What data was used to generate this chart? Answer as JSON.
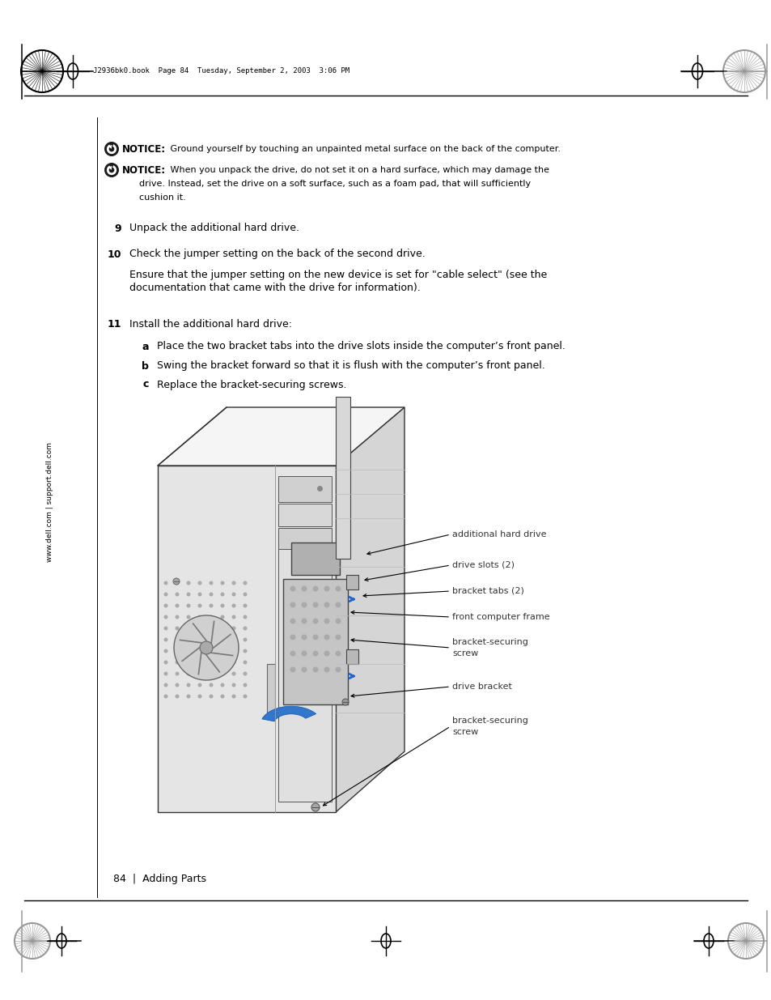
{
  "bg_color": "#ffffff",
  "header_text": "J2936bk0.book  Page 84  Tuesday, September 2, 2003  3:06 PM",
  "footer_text": "84  |  Adding Parts",
  "sidebar_text": "www.dell.com | support.dell.com",
  "notice1_bold": "NOTICE:",
  "notice1_rest": " Ground yourself by touching an unpainted metal surface on the back of the computer.",
  "notice2_bold": "NOTICE:",
  "notice2_line1": " When you unpack the drive, do not set it on a hard surface, which may damage the",
  "notice2_line2": "drive. Instead, set the drive on a soft surface, such as a foam pad, that will sufficiently",
  "notice2_line3": "cushion it.",
  "step9_num": "9",
  "step9_text": "Unpack the additional hard drive.",
  "step10_num": "10",
  "step10_text": "Check the jumper setting on the back of the second drive.",
  "step10_sub1": "Ensure that the jumper setting on the new device is set for \"cable select\" (see the",
  "step10_sub2": "documentation that came with the drive for information).",
  "step11_num": "11",
  "step11_text": "Install the additional hard drive:",
  "step11a": "Place the two bracket tabs into the drive slots inside the computer’s front panel.",
  "step11b": "Swing the bracket forward so that it is flush with the computer’s front panel.",
  "step11c": "Replace the bracket-securing screws.",
  "label1": "additional hard drive",
  "label2": "drive slots (2)",
  "label3": "bracket tabs (2)",
  "label4": "front computer frame",
  "label5a": "bracket-securing",
  "label5b": "screw",
  "label6": "drive bracket",
  "label7a": "bracket-securing",
  "label7b": "screw",
  "notice_icon_color": "#222222",
  "line_color": "#333333",
  "label_color": "#333333"
}
